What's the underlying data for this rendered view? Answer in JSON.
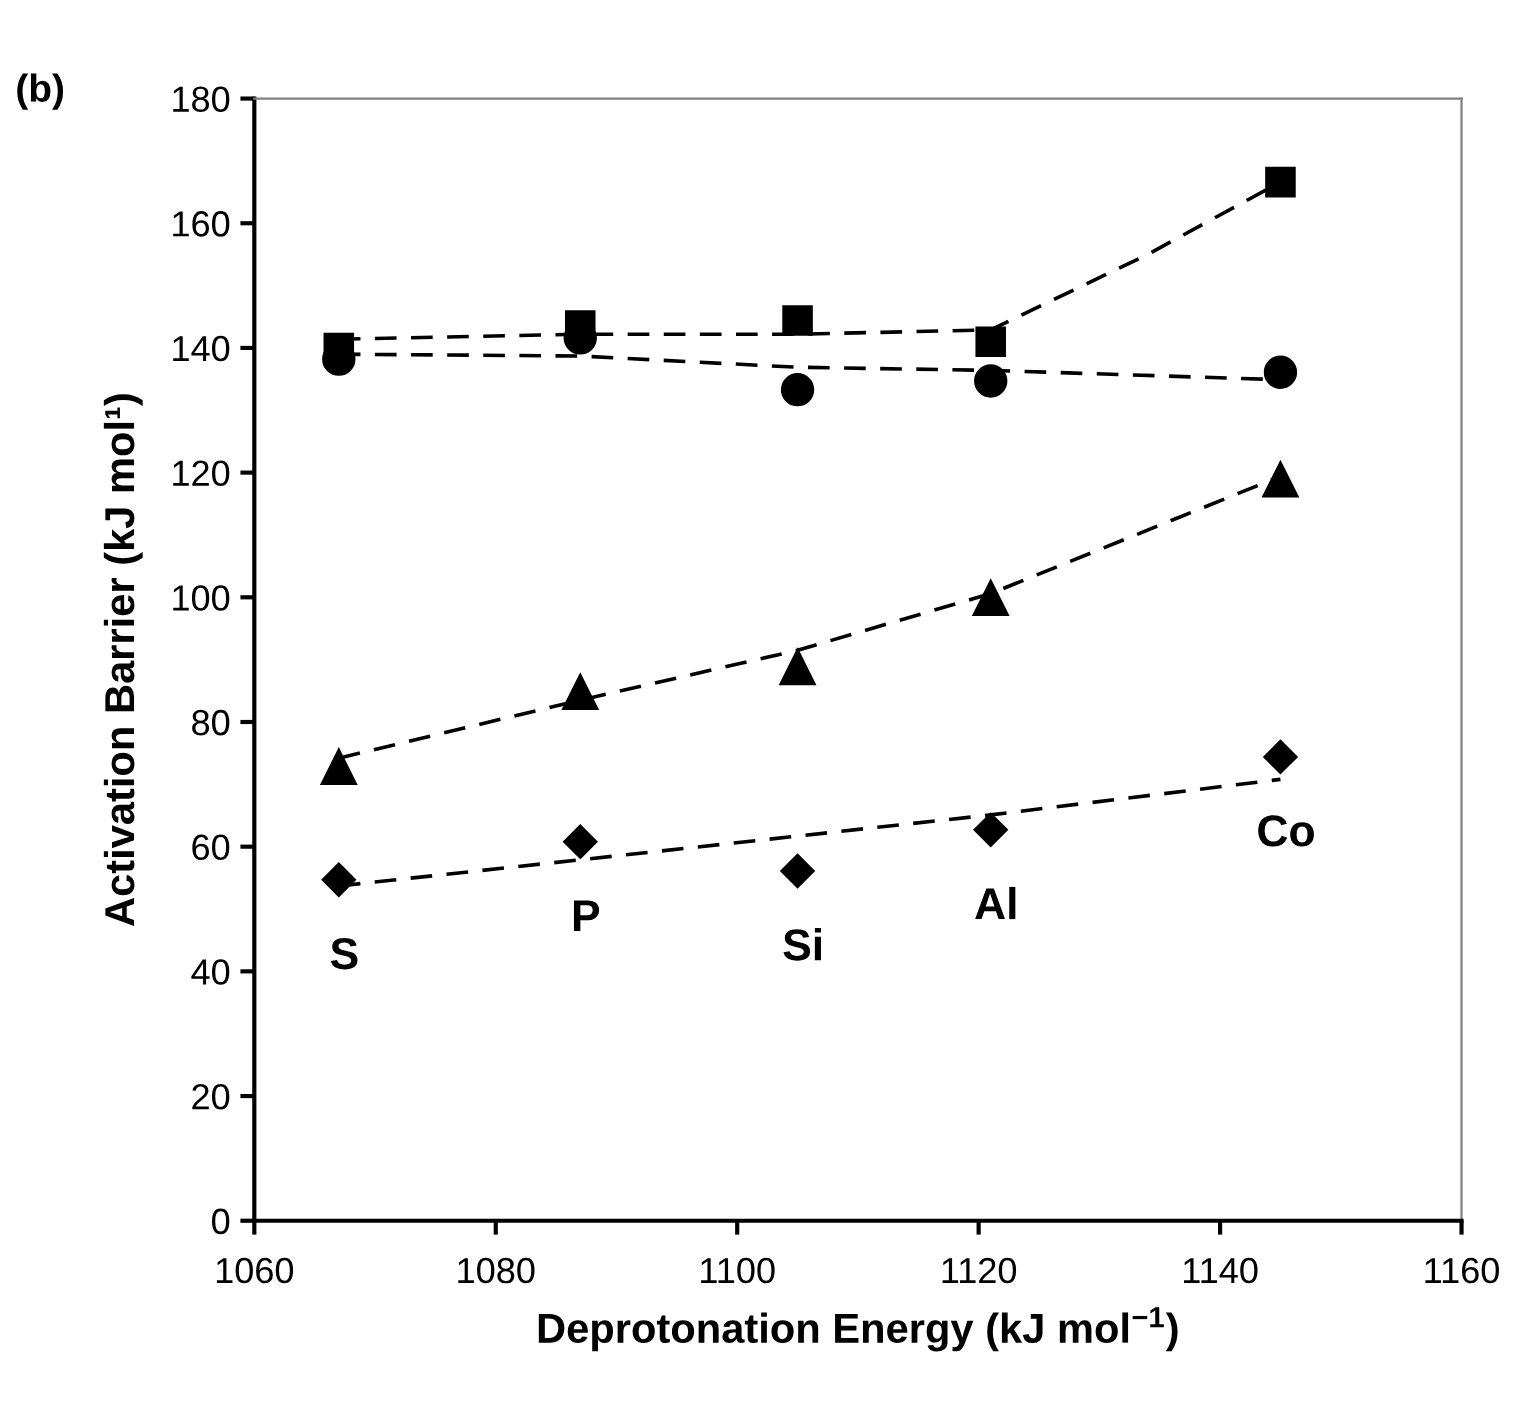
{
  "chart_data": {
    "type": "scatter",
    "xlabel": "Deprotonation Energy (kJ mol$^{−1}$)",
    "ylabel": "Activation Barrier (kJ mol¹)",
    "xlim": [
      1060,
      1160
    ],
    "xticks": [
      1060,
      1080,
      1100,
      1120,
      1140,
      1160
    ],
    "ylim": [
      0,
      180
    ],
    "yticks": [
      0,
      20,
      40,
      60,
      80,
      100,
      120,
      140,
      160,
      180
    ],
    "grid": false,
    "series": [
      {
        "marker": "square",
        "color": "#000000",
        "x": [
          1067,
          1087,
          1105,
          1121,
          1145
        ],
        "values": [
          140,
          143.6,
          144.4,
          141,
          166.6
        ]
      },
      {
        "marker": "circle",
        "color": "#000000",
        "x": [
          1067,
          1087,
          1105,
          1121,
          1145
        ],
        "values": [
          138.2,
          141.6,
          133.3,
          134.7,
          136.1
        ]
      },
      {
        "marker": "triangle",
        "color": "#000000",
        "x": [
          1067,
          1087,
          1105,
          1121,
          1145
        ],
        "values": [
          72.8,
          84.8,
          88.8,
          99.9,
          118.9
        ]
      },
      {
        "marker": "diamond",
        "color": "#000000",
        "x": [
          1067,
          1087,
          1105,
          1121,
          1145
        ],
        "values": [
          54.7,
          60.8,
          56.1,
          62.7,
          74.4
        ]
      },
      {
        "type": "line",
        "marker": "none",
        "line_style": "dashed",
        "color": "#000000",
        "x": [
          1067,
          1087,
          1105,
          1121,
          1134,
          1145
        ],
        "values": [
          141.4,
          142.2,
          142.2,
          142.9,
          155,
          166.6
        ]
      },
      {
        "type": "line",
        "marker": "none",
        "line_style": "dashed",
        "color": "#000000",
        "x": [
          1067,
          1087,
          1105,
          1121,
          1145
        ],
        "values": [
          139,
          138.7,
          136.9,
          136.4,
          134.9
        ]
      },
      {
        "type": "line",
        "marker": "none",
        "line_style": "dashed",
        "color": "#000000",
        "x": [
          1067,
          1087,
          1105,
          1121,
          1145
        ],
        "values": [
          74.2,
          83.5,
          91.5,
          100.6,
          119.4
        ]
      },
      {
        "type": "line",
        "marker": "none",
        "line_style": "dashed",
        "color": "#000000",
        "x": [
          1067,
          1087,
          1105,
          1121,
          1145
        ],
        "values": [
          53.7,
          57.9,
          61.7,
          65.1,
          70.8
        ]
      }
    ],
    "annotations": [
      "(b)",
      "S",
      "P",
      "Si",
      "Al",
      "Co"
    ]
  }
}
